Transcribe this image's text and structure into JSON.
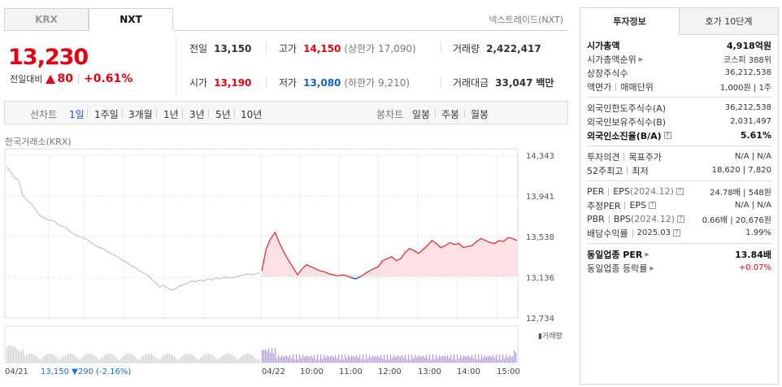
{
  "market_tabs": [
    "KRX",
    "NXT"
  ],
  "nxt_label": "넥스트레이드(NXT)",
  "price": "13,230",
  "change": {
    "label": "전일대비",
    "amount": "80",
    "pct": "+0.61%"
  },
  "stats": {
    "prev": {
      "label": "전일",
      "value": "13,150"
    },
    "high": {
      "label": "고가",
      "value": "14,150",
      "sub": "(상한가 17,090)"
    },
    "volume": {
      "label": "거래량",
      "value": "2,422,417"
    },
    "open": {
      "label": "시가",
      "value": "13,190"
    },
    "low": {
      "label": "저가",
      "value": "13,080",
      "sub": "(하한가 9,210)"
    },
    "amount": {
      "label": "거래대금",
      "value": "33,047",
      "unit": "백만"
    }
  },
  "line_chart_label": "선차트",
  "periods": [
    "1일",
    "1주일",
    "3개월",
    "1년",
    "3년",
    "5년",
    "10년"
  ],
  "candle_chart_label": "봉차트",
  "candle_periods": [
    "일봉",
    "주봉",
    "월봉"
  ],
  "source": "한국거래소(KRX)",
  "chart_data": {
    "type": "line",
    "y_ticks": [
      "14,343",
      "13,941",
      "13,538",
      "13,136",
      "12,734"
    ],
    "ylim": [
      12734,
      14343
    ],
    "x_ticks": [
      "04/21",
      "04/22",
      "10:00",
      "11:00",
      "12:00",
      "13:00",
      "14:00",
      "15:00"
    ],
    "prev_close": 13150,
    "volume_label": "거래량",
    "bottom_info": {
      "date": "04/21",
      "price": "13,150",
      "change": "290",
      "pct": "(-2.16%)"
    },
    "series": [
      {
        "values": [
          14230,
          14180,
          14120,
          14100,
          13950,
          13900,
          13870,
          13820,
          13760,
          13730,
          13710,
          13700,
          13690,
          13650,
          13640,
          13620,
          13580,
          13560,
          13540,
          13530,
          13510,
          13480,
          13450,
          13430,
          13420,
          13390,
          13370,
          13350,
          13330,
          13300,
          13280,
          13250,
          13230,
          13200,
          13180,
          13160,
          13120,
          13080,
          13040,
          13060,
          13030,
          13010,
          13020,
          13050,
          13060,
          13080,
          13100,
          13090,
          13110,
          13100,
          13120,
          13110,
          13130,
          13120,
          13140,
          13130,
          13130,
          13140,
          13150,
          13160,
          13170,
          13160,
          13170,
          13180
        ]
      },
      {
        "values": [
          13200,
          13420,
          13520,
          13580,
          13470,
          13380,
          13300,
          13230,
          13160,
          13220,
          13260,
          13240,
          13220,
          13200,
          13190,
          13170,
          13160,
          13150,
          13160,
          13150,
          13130,
          13120,
          13140,
          13170,
          13200,
          13220,
          13240,
          13300,
          13320,
          13340,
          13300,
          13320,
          13380,
          13420,
          13400,
          13370,
          13410,
          13450,
          13500,
          13470,
          13430,
          13450,
          13480,
          13460,
          13470,
          13430,
          13440,
          13450,
          13490,
          13520,
          13500,
          13480,
          13470,
          13500,
          13490,
          13530,
          13520,
          13500
        ]
      }
    ]
  },
  "right_tabs": [
    "투자정보",
    "호가 10단계"
  ],
  "info": {
    "market_cap": {
      "label": "시가총액",
      "value": "4,918억원"
    },
    "rank": {
      "label": "시가총액순위",
      "value": "코스피 388위"
    },
    "shares": {
      "label": "상장주식수",
      "value": "36,212,538"
    },
    "par": {
      "label": "액면가",
      "label2": "매매단위",
      "value": "1,000원",
      "value2": "1주"
    },
    "foreign_limit": {
      "label": "외국인한도주식수(A)",
      "value": "36,212,538"
    },
    "foreign_hold": {
      "label": "외국인보유주식수(B)",
      "value": "2,031,497"
    },
    "foreign_ratio": {
      "label": "외국인소진율(B/A)",
      "value": "5.61%"
    },
    "opinion": {
      "label": "투자의견",
      "label2": "목표주가",
      "value": "N/A",
      "value2": "N/A"
    },
    "week52": {
      "label": "52주최고",
      "label2": "최저",
      "value": "18,620",
      "value2": "7,820"
    },
    "per": {
      "label": "PER",
      "label2": "EPS",
      "date": "(2024.12)",
      "value": "24.78배",
      "value2": "548원"
    },
    "est_per": {
      "label": "추정PER",
      "label2": "EPS",
      "value": "N/A",
      "value2": "N/A"
    },
    "pbr": {
      "label": "PBR",
      "label2": "BPS",
      "date": "(2024.12)",
      "value": "0.66배",
      "value2": "20,676원"
    },
    "dividend": {
      "label": "배당수익률",
      "date": "2025.03",
      "value": "1.99%"
    },
    "sector_per": {
      "label": "동일업종 PER",
      "value": "13.84배"
    },
    "sector_rate": {
      "label": "동일업종 등락률",
      "value": "+0.07%"
    }
  }
}
